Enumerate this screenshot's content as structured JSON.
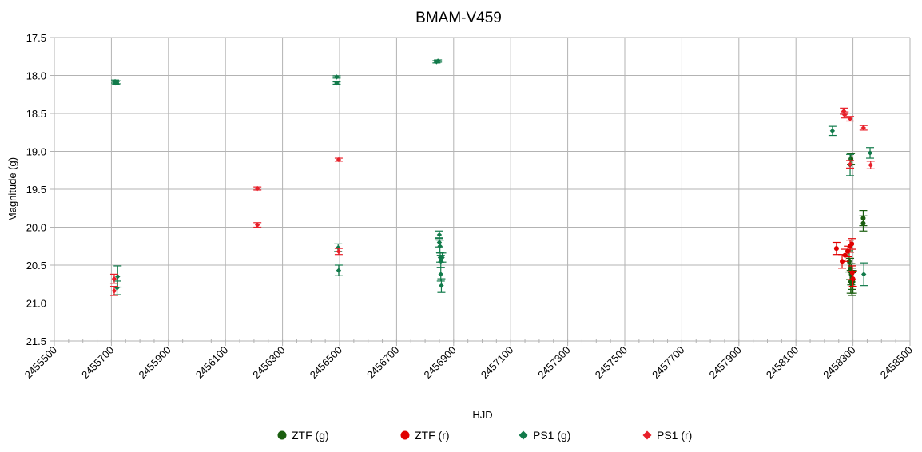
{
  "chart_data": {
    "type": "scatter",
    "title": "BMAM-V459",
    "xlabel": "HJD",
    "ylabel": "Magnitude (g)",
    "xlim": [
      2455500,
      2458500
    ],
    "ylim": [
      17.5,
      21.5
    ],
    "y_inverted": true,
    "grid": true,
    "legend_position": "bottom",
    "x_ticks": [
      "2455500",
      "2455700",
      "2455900",
      "2456100",
      "2456300",
      "2456500",
      "2456700",
      "2456900",
      "2457100",
      "2457300",
      "2457500",
      "2457700",
      "2457900",
      "2458100",
      "2458300",
      "2458500"
    ],
    "y_ticks": [
      "17.5",
      "18.0",
      "18.5",
      "19.0",
      "19.5",
      "20.0",
      "20.5",
      "21.0",
      "21.5"
    ],
    "series": [
      {
        "name": "ZTF (g)",
        "color": "#1a5e0f",
        "marker": "circle",
        "points": [
          {
            "x": 2458287,
            "y": 20.45,
            "err": 0.14
          },
          {
            "x": 2458290,
            "y": 20.55,
            "err": 0.14
          },
          {
            "x": 2458292,
            "y": 20.72,
            "err": 0.15
          },
          {
            "x": 2458294,
            "y": 20.62,
            "err": 0.14
          },
          {
            "x": 2458296,
            "y": 20.75,
            "err": 0.15
          },
          {
            "x": 2458298,
            "y": 20.68,
            "err": 0.14
          },
          {
            "x": 2458300,
            "y": 20.72,
            "err": 0.15
          },
          {
            "x": 2458293,
            "y": 19.1,
            "err": 0.07
          },
          {
            "x": 2458336,
            "y": 19.88,
            "err": 0.1
          },
          {
            "x": 2458336,
            "y": 19.95,
            "err": 0.1
          }
        ]
      },
      {
        "name": "ZTF (r)",
        "color": "#e00000",
        "marker": "circle",
        "points": [
          {
            "x": 2458242,
            "y": 20.28,
            "err": 0.08
          },
          {
            "x": 2458262,
            "y": 20.45,
            "err": 0.09
          },
          {
            "x": 2458272,
            "y": 20.37,
            "err": 0.08
          },
          {
            "x": 2458282,
            "y": 20.32,
            "err": 0.07
          },
          {
            "x": 2458290,
            "y": 20.25,
            "err": 0.08
          },
          {
            "x": 2458296,
            "y": 20.22,
            "err": 0.07
          },
          {
            "x": 2458298,
            "y": 20.6,
            "err": 0.09
          },
          {
            "x": 2458300,
            "y": 20.68,
            "err": 0.1
          }
        ]
      },
      {
        "name": "PS1 (g)",
        "color": "#117a4a",
        "marker": "diamond",
        "points": [
          {
            "x": 2455713,
            "y": 18.08,
            "err": 0.02
          },
          {
            "x": 2455715,
            "y": 18.1,
            "err": 0.02
          },
          {
            "x": 2455718,
            "y": 18.09,
            "err": 0.02
          },
          {
            "x": 2455720,
            "y": 20.8,
            "err": 0.09
          },
          {
            "x": 2455722,
            "y": 20.65,
            "err": 0.14
          },
          {
            "x": 2456490,
            "y": 18.02,
            "err": 0.015
          },
          {
            "x": 2456490,
            "y": 18.1,
            "err": 0.015
          },
          {
            "x": 2456495,
            "y": 20.27,
            "err": 0.05
          },
          {
            "x": 2456497,
            "y": 20.57,
            "err": 0.07
          },
          {
            "x": 2456840,
            "y": 17.82,
            "err": 0.015
          },
          {
            "x": 2456845,
            "y": 17.81,
            "err": 0.015
          },
          {
            "x": 2456850,
            "y": 20.1,
            "err": 0.05
          },
          {
            "x": 2456850,
            "y": 20.2,
            "err": 0.06
          },
          {
            "x": 2456852,
            "y": 20.25,
            "err": 0.08
          },
          {
            "x": 2456853,
            "y": 20.4,
            "err": 0.06
          },
          {
            "x": 2456855,
            "y": 20.45,
            "err": 0.08
          },
          {
            "x": 2456855,
            "y": 20.62,
            "err": 0.09
          },
          {
            "x": 2456857,
            "y": 20.77,
            "err": 0.09
          },
          {
            "x": 2456860,
            "y": 20.4,
            "err": 0.06
          },
          {
            "x": 2458228,
            "y": 18.73,
            "err": 0.06
          },
          {
            "x": 2458290,
            "y": 19.18,
            "err": 0.14
          },
          {
            "x": 2458360,
            "y": 19.02,
            "err": 0.07
          },
          {
            "x": 2458338,
            "y": 20.62,
            "err": 0.15
          }
        ]
      },
      {
        "name": "PS1 (r)",
        "color": "#e8202a",
        "marker": "diamond",
        "points": [
          {
            "x": 2455710,
            "y": 20.68,
            "err": 0.06
          },
          {
            "x": 2455710,
            "y": 20.84,
            "err": 0.06
          },
          {
            "x": 2456212,
            "y": 19.49,
            "err": 0.02
          },
          {
            "x": 2456212,
            "y": 19.97,
            "err": 0.03
          },
          {
            "x": 2456497,
            "y": 19.11,
            "err": 0.02
          },
          {
            "x": 2456497,
            "y": 20.32,
            "err": 0.04
          },
          {
            "x": 2458268,
            "y": 18.47,
            "err": 0.04
          },
          {
            "x": 2458271,
            "y": 18.52,
            "err": 0.04
          },
          {
            "x": 2458290,
            "y": 18.57,
            "err": 0.03
          },
          {
            "x": 2458290,
            "y": 19.17,
            "err": 0.05
          },
          {
            "x": 2458337,
            "y": 18.69,
            "err": 0.03
          },
          {
            "x": 2458362,
            "y": 19.18,
            "err": 0.05
          }
        ]
      }
    ]
  }
}
